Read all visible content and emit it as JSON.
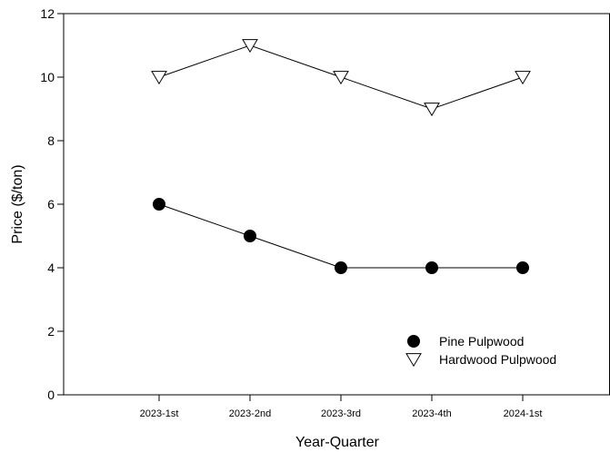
{
  "chart_data": {
    "type": "line",
    "title": "",
    "xlabel": "Year-Quarter",
    "ylabel": "Price ($/ton)",
    "categories": [
      "2023-1st",
      "2023-2nd",
      "2023-3rd",
      "2023-4th",
      "2024-1st"
    ],
    "ylim": [
      0,
      12
    ],
    "yticks": [
      "0",
      "2",
      "4",
      "6",
      "8",
      "10",
      "12"
    ],
    "grid": false,
    "legend_position": "bottom-right",
    "series": [
      {
        "name": "Pine Pulpwood",
        "values": [
          6,
          5,
          4,
          4,
          4
        ],
        "marker": "filled-circle",
        "color": "#000000"
      },
      {
        "name": "Hardwood Pulpwood",
        "values": [
          10,
          11,
          10,
          9,
          10
        ],
        "marker": "open-down-triangle",
        "color": "#000000"
      }
    ]
  }
}
